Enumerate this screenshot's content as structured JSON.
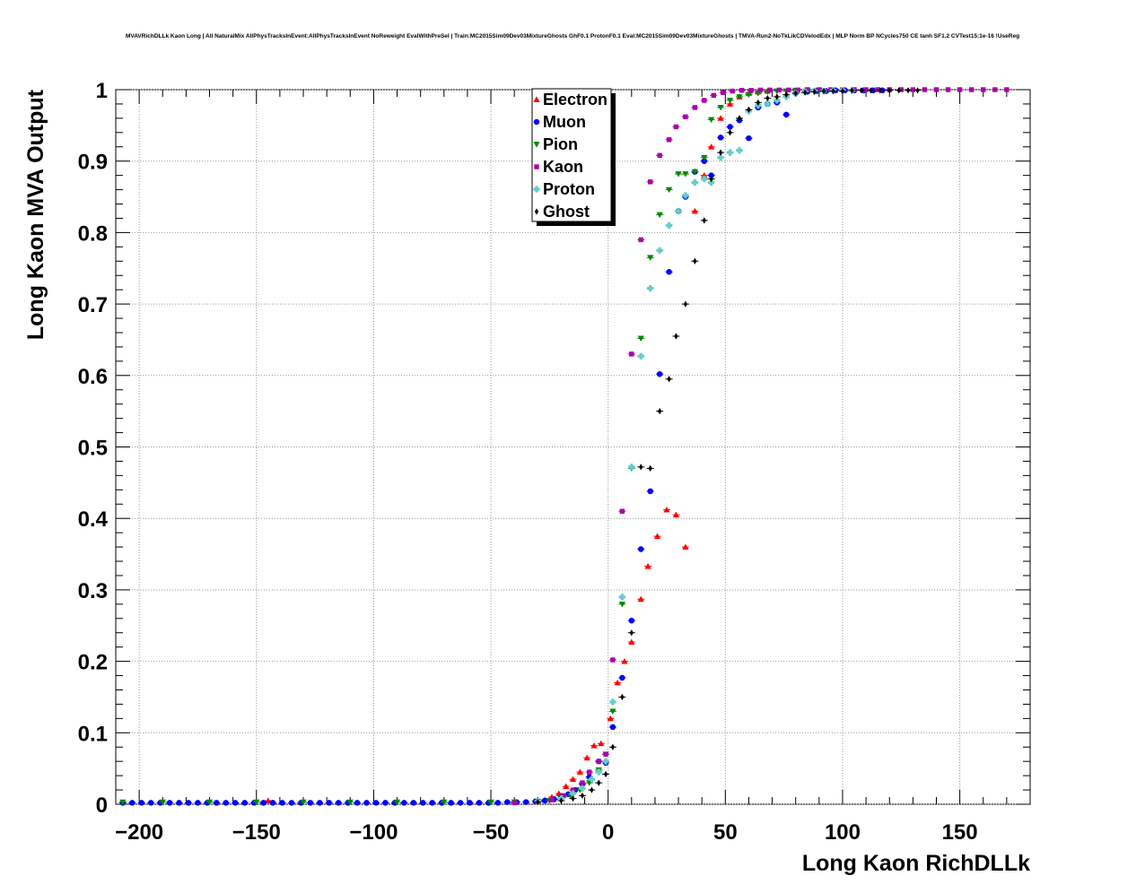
{
  "chart_data": {
    "type": "scatter",
    "title": "MVAVRichDLLk Kaon Long | All NaturalMix AllPhysTracksInEvent:AllPhysTracksInEvent NoReweight EvalWithPreSel | Train:MC2015Sim09Dev03MixtureGhosts GhF0.1 ProtonF0.1 Eval:MC2015Sim09Dev03MixtureGhosts | TMVA-Run2-NoTkLikCDVelodEdx | MLP Norm BP NCycles750 CE tanh SF1.2 CVTest15:1e-16 !UseReg",
    "xlabel": "Long Kaon RichDLLk",
    "ylabel": "Long Kaon MVA Output",
    "xlim": [
      -210,
      180
    ],
    "ylim": [
      0,
      1
    ],
    "xticks": [
      -200,
      -150,
      -100,
      -50,
      0,
      50,
      100,
      150
    ],
    "xtick_labels": [
      "−200",
      "−150",
      "−100",
      "−50",
      "0",
      "50",
      "100",
      "150"
    ],
    "yticks": [
      0,
      0.1,
      0.2,
      0.3,
      0.4,
      0.5,
      0.6,
      0.7,
      0.8,
      0.9,
      1
    ],
    "ytick_labels": [
      "0",
      "0.1",
      "0.2",
      "0.3",
      "0.4",
      "0.5",
      "0.6",
      "0.7",
      "0.8",
      "0.9",
      "1"
    ],
    "grid": true,
    "legend_position": "top-center",
    "series": [
      {
        "name": "Electron",
        "color": "#ff0000",
        "marker": "triangle-up",
        "points": [
          [
            -145,
            0.005
          ],
          [
            -30,
            0.004
          ],
          [
            -27,
            0.006
          ],
          [
            -24,
            0.01
          ],
          [
            -21,
            0.015
          ],
          [
            -18,
            0.025
          ],
          [
            -15,
            0.035
          ],
          [
            -12,
            0.045
          ],
          [
            -9,
            0.065
          ],
          [
            -6,
            0.082
          ],
          [
            -3,
            0.085
          ],
          [
            1,
            0.12
          ],
          [
            4,
            0.17
          ],
          [
            7,
            0.2
          ],
          [
            10,
            0.227
          ],
          [
            14,
            0.287
          ],
          [
            17,
            0.333
          ],
          [
            21,
            0.375
          ],
          [
            25,
            0.412
          ],
          [
            29,
            0.405
          ],
          [
            33,
            0.36
          ],
          [
            37,
            0.83
          ],
          [
            41,
            0.88
          ],
          [
            44,
            0.92
          ],
          [
            48,
            0.96
          ],
          [
            52,
            0.98
          ],
          [
            56,
            0.99
          ],
          [
            60,
            0.995
          ],
          [
            64,
            0.997
          ],
          [
            68,
            0.998
          ]
        ]
      },
      {
        "name": "Muon",
        "color": "#0000ff",
        "marker": "circle",
        "points": [
          [
            -207,
            0.002
          ],
          [
            -203,
            0.002
          ],
          [
            -199,
            0.002
          ],
          [
            -195,
            0.002
          ],
          [
            -191,
            0.002
          ],
          [
            -187,
            0.002
          ],
          [
            -183,
            0.002
          ],
          [
            -179,
            0.002
          ],
          [
            -175,
            0.002
          ],
          [
            -171,
            0.002
          ],
          [
            -167,
            0.002
          ],
          [
            -163,
            0.002
          ],
          [
            -159,
            0.002
          ],
          [
            -155,
            0.002
          ],
          [
            -151,
            0.002
          ],
          [
            -147,
            0.002
          ],
          [
            -143,
            0.002
          ],
          [
            -139,
            0.002
          ],
          [
            -135,
            0.002
          ],
          [
            -131,
            0.002
          ],
          [
            -127,
            0.002
          ],
          [
            -123,
            0.002
          ],
          [
            -119,
            0.002
          ],
          [
            -115,
            0.002
          ],
          [
            -111,
            0.002
          ],
          [
            -107,
            0.002
          ],
          [
            -103,
            0.002
          ],
          [
            -99,
            0.002
          ],
          [
            -95,
            0.002
          ],
          [
            -91,
            0.002
          ],
          [
            -87,
            0.002
          ],
          [
            -83,
            0.002
          ],
          [
            -79,
            0.002
          ],
          [
            -75,
            0.002
          ],
          [
            -71,
            0.002
          ],
          [
            -67,
            0.002
          ],
          [
            -63,
            0.002
          ],
          [
            -59,
            0.002
          ],
          [
            -55,
            0.002
          ],
          [
            -51,
            0.002
          ],
          [
            -47,
            0.002
          ],
          [
            -43,
            0.003
          ],
          [
            -39,
            0.003
          ],
          [
            -35,
            0.003
          ],
          [
            -31,
            0.004
          ],
          [
            -27,
            0.005
          ],
          [
            -23,
            0.007
          ],
          [
            -20,
            0.01
          ],
          [
            -17,
            0.014
          ],
          [
            -14,
            0.02
          ],
          [
            -11,
            0.028
          ],
          [
            -8,
            0.038
          ],
          [
            -4,
            0.06
          ],
          [
            -1,
            0.058
          ],
          [
            2,
            0.108
          ],
          [
            6,
            0.177
          ],
          [
            10,
            0.257
          ],
          [
            14,
            0.357
          ],
          [
            18,
            0.438
          ],
          [
            22,
            0.602
          ],
          [
            26,
            0.745
          ],
          [
            30,
            0.83
          ],
          [
            33,
            0.85
          ],
          [
            37,
            0.885
          ],
          [
            41,
            0.9
          ],
          [
            44,
            0.88
          ],
          [
            48,
            0.933
          ],
          [
            52,
            0.948
          ],
          [
            56,
            0.957
          ],
          [
            60,
            0.932
          ],
          [
            64,
            0.975
          ],
          [
            68,
            0.98
          ],
          [
            72,
            0.982
          ],
          [
            76,
            0.965
          ],
          [
            80,
            0.995
          ],
          [
            85,
            0.997
          ],
          [
            89,
            0.998
          ],
          [
            93,
            0.998
          ],
          [
            97,
            0.999
          ],
          [
            101,
            0.999
          ],
          [
            105,
            0.999
          ],
          [
            109,
            0.999
          ],
          [
            113,
            0.999
          ],
          [
            117,
            0.999
          ]
        ]
      },
      {
        "name": "Pion",
        "color": "#008800",
        "marker": "triangle-down",
        "points": [
          [
            -207,
            0.003
          ],
          [
            -190,
            0.003
          ],
          [
            -170,
            0.003
          ],
          [
            -150,
            0.003
          ],
          [
            -130,
            0.003
          ],
          [
            -110,
            0.003
          ],
          [
            -90,
            0.003
          ],
          [
            -70,
            0.003
          ],
          [
            -50,
            0.003
          ],
          [
            -40,
            0.003
          ],
          [
            -30,
            0.004
          ],
          [
            -25,
            0.005
          ],
          [
            -20,
            0.008
          ],
          [
            -16,
            0.012
          ],
          [
            -12,
            0.02
          ],
          [
            -8,
            0.03
          ],
          [
            -4,
            0.048
          ],
          [
            -1,
            0.07
          ],
          [
            2,
            0.13
          ],
          [
            6,
            0.28
          ],
          [
            10,
            0.47
          ],
          [
            14,
            0.652
          ],
          [
            18,
            0.765
          ],
          [
            22,
            0.825
          ],
          [
            26,
            0.86
          ],
          [
            30,
            0.882
          ],
          [
            33,
            0.882
          ],
          [
            37,
            0.885
          ],
          [
            41,
            0.905
          ],
          [
            44,
            0.958
          ],
          [
            48,
            0.975
          ],
          [
            52,
            0.985
          ],
          [
            56,
            0.99
          ],
          [
            60,
            0.993
          ],
          [
            64,
            0.995
          ],
          [
            68,
            0.997
          ],
          [
            72,
            0.998
          ],
          [
            76,
            0.998
          ],
          [
            80,
            0.999
          ],
          [
            85,
            0.999
          ],
          [
            90,
            0.999
          ]
        ]
      },
      {
        "name": "Kaon",
        "color": "#aa00aa",
        "marker": "square",
        "points": [
          [
            -40,
            0.002
          ],
          [
            -30,
            0.003
          ],
          [
            -24,
            0.006
          ],
          [
            -19,
            0.012
          ],
          [
            -15,
            0.02
          ],
          [
            -11,
            0.03
          ],
          [
            -8,
            0.045
          ],
          [
            -4,
            0.06
          ],
          [
            -1,
            0.07
          ],
          [
            2,
            0.202
          ],
          [
            6,
            0.41
          ],
          [
            10,
            0.63
          ],
          [
            14,
            0.79
          ],
          [
            18,
            0.871
          ],
          [
            22,
            0.908
          ],
          [
            26,
            0.93
          ],
          [
            29,
            0.948
          ],
          [
            33,
            0.962
          ],
          [
            37,
            0.975
          ],
          [
            41,
            0.985
          ],
          [
            45,
            0.992
          ],
          [
            49,
            0.996
          ],
          [
            53,
            0.998
          ],
          [
            57,
            0.999
          ],
          [
            61,
            0.999
          ],
          [
            65,
            0.9995
          ],
          [
            69,
            0.9995
          ],
          [
            73,
            0.9995
          ],
          [
            77,
            0.9995
          ],
          [
            81,
            0.9995
          ],
          [
            85,
            1.0
          ],
          [
            90,
            1.0
          ],
          [
            95,
            1.0
          ],
          [
            100,
            1.0
          ],
          [
            105,
            1.0
          ],
          [
            110,
            1.0
          ],
          [
            115,
            1.0
          ],
          [
            120,
            1.0
          ],
          [
            125,
            1.0
          ],
          [
            130,
            1.0
          ],
          [
            135,
            1.0
          ],
          [
            140,
            1.0
          ],
          [
            145,
            1.0
          ],
          [
            150,
            1.0
          ],
          [
            155,
            1.0
          ],
          [
            160,
            1.0
          ],
          [
            165,
            1.0
          ],
          [
            170,
            1.0
          ]
        ]
      },
      {
        "name": "Proton",
        "color": "#66cccc",
        "marker": "cross",
        "points": [
          [
            -30,
            0.004
          ],
          [
            -20,
            0.008
          ],
          [
            -15,
            0.015
          ],
          [
            -11,
            0.022
          ],
          [
            -7,
            0.035
          ],
          [
            -4,
            0.045
          ],
          [
            -1,
            0.06
          ],
          [
            2,
            0.143
          ],
          [
            6,
            0.29
          ],
          [
            10,
            0.472
          ],
          [
            14,
            0.627
          ],
          [
            18,
            0.722
          ],
          [
            22,
            0.775
          ],
          [
            26,
            0.81
          ],
          [
            30,
            0.83
          ],
          [
            33,
            0.852
          ],
          [
            37,
            0.87
          ],
          [
            41,
            0.875
          ],
          [
            44,
            0.87
          ],
          [
            48,
            0.905
          ],
          [
            52,
            0.912
          ],
          [
            56,
            0.915
          ],
          [
            60,
            0.97
          ],
          [
            64,
            0.978
          ],
          [
            68,
            0.98
          ],
          [
            72,
            0.985
          ],
          [
            76,
            0.99
          ],
          [
            80,
            0.995
          ],
          [
            84,
            0.997
          ],
          [
            88,
            0.998
          ],
          [
            92,
            0.998
          ],
          [
            96,
            0.999
          ],
          [
            100,
            0.999
          ],
          [
            104,
            0.999
          ]
        ]
      },
      {
        "name": "Ghost",
        "color": "#000000",
        "marker": "diamond",
        "points": [
          [
            -30,
            0.003
          ],
          [
            -20,
            0.005
          ],
          [
            -15,
            0.008
          ],
          [
            -11,
            0.012
          ],
          [
            -7,
            0.02
          ],
          [
            -4,
            0.03
          ],
          [
            -1,
            0.042
          ],
          [
            2,
            0.08
          ],
          [
            6,
            0.15
          ],
          [
            10,
            0.24
          ],
          [
            14,
            0.472
          ],
          [
            18,
            0.47
          ],
          [
            22,
            0.55
          ],
          [
            26,
            0.595
          ],
          [
            29,
            0.655
          ],
          [
            33,
            0.7
          ],
          [
            37,
            0.76
          ],
          [
            41,
            0.817
          ],
          [
            44,
            0.875
          ],
          [
            48,
            0.912
          ],
          [
            52,
            0.94
          ],
          [
            56,
            0.96
          ],
          [
            60,
            0.972
          ],
          [
            64,
            0.982
          ],
          [
            68,
            0.988
          ],
          [
            72,
            0.99
          ],
          [
            76,
            0.993
          ],
          [
            80,
            0.995
          ],
          [
            84,
            0.996
          ],
          [
            88,
            0.997
          ],
          [
            92,
            0.998
          ],
          [
            96,
            0.998
          ],
          [
            100,
            0.998
          ],
          [
            104,
            0.999
          ],
          [
            108,
            0.999
          ],
          [
            112,
            0.999
          ],
          [
            116,
            0.999
          ],
          [
            120,
            0.999
          ],
          [
            124,
            0.999
          ],
          [
            128,
            0.999
          ],
          [
            132,
            0.999
          ]
        ]
      }
    ]
  }
}
